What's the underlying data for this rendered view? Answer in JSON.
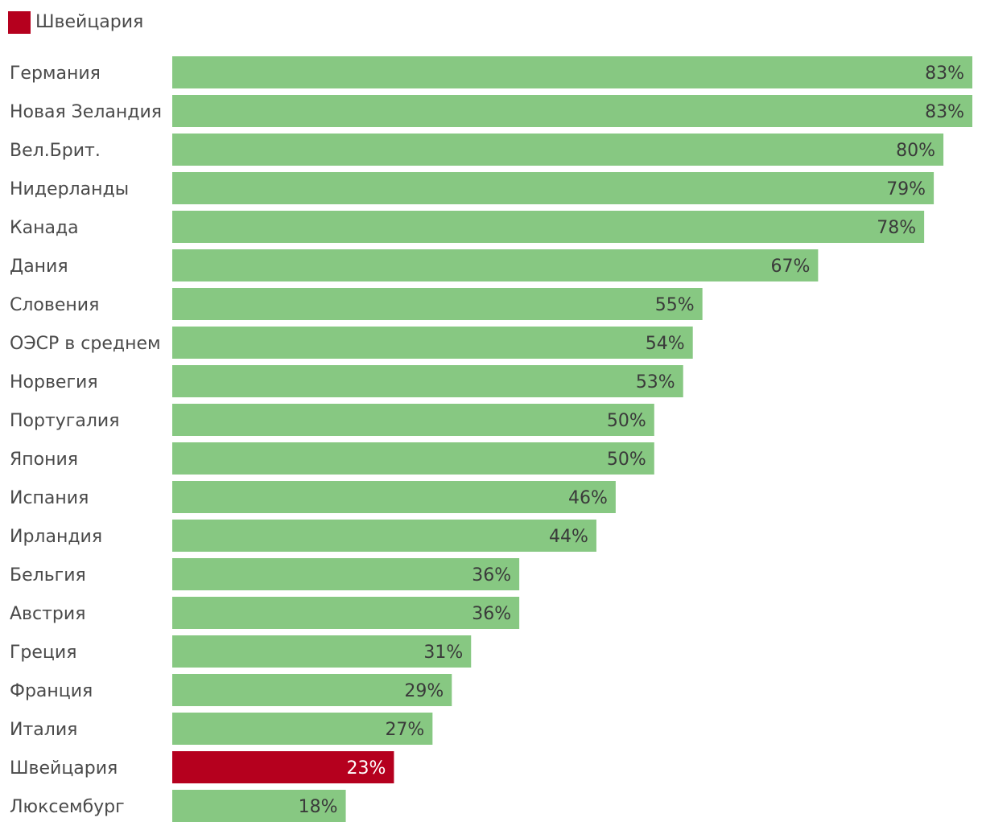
{
  "legend": {
    "label": "Швейцария",
    "color": "#b5001e"
  },
  "colors": {
    "bar": "#87c882",
    "highlight": "#b5001e",
    "label_dark": "#3a3a3a",
    "label_light": "#ffffff"
  },
  "chart_data": {
    "type": "bar",
    "orientation": "horizontal",
    "title": "",
    "xlabel": "",
    "ylabel": "",
    "xlim": [
      0,
      83
    ],
    "grid": false,
    "legend_position": "top-left",
    "highlight_category": "Швейцария",
    "categories": [
      "Германия",
      "Новая Зеландия",
      "Вел.Брит.",
      "Нидерланды",
      "Канада",
      "Дания",
      "Словения",
      "ОЭСР в среднем",
      "Норвегия",
      "Португалия",
      "Япония",
      "Испания",
      "Ирландия",
      "Бельгия",
      "Австрия",
      "Греция",
      "Франция",
      "Италия",
      "Швейцария",
      "Люксембург"
    ],
    "values": [
      83,
      83,
      80,
      79,
      78,
      67,
      55,
      54,
      53,
      50,
      50,
      46,
      44,
      36,
      36,
      31,
      29,
      27,
      23,
      18
    ],
    "value_labels": [
      "83%",
      "83%",
      "80%",
      "79%",
      "78%",
      "67%",
      "55%",
      "54%",
      "53%",
      "50%",
      "50%",
      "46%",
      "44%",
      "36%",
      "36%",
      "31%",
      "29%",
      "27%",
      "23%",
      "18%"
    ]
  }
}
